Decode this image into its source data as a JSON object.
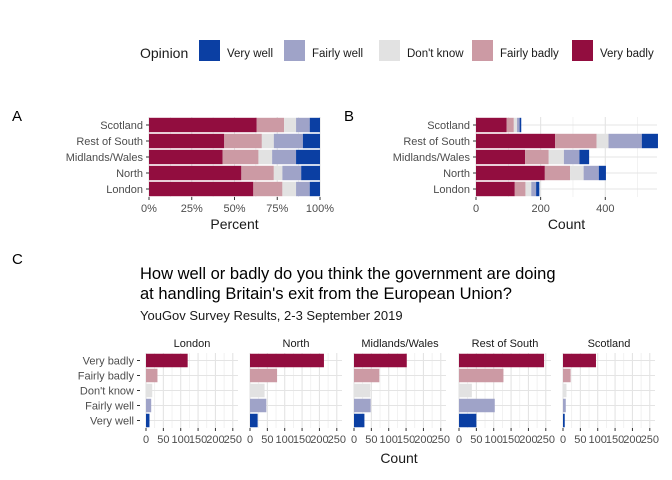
{
  "colors": {
    "very_well": "#0b3fa3",
    "fairly_well": "#9fa3c8",
    "dont_know": "#e2e2e2",
    "fairly_badly": "#cc9aa4",
    "very_badly": "#920d3f",
    "grid": "#ececec"
  },
  "legend": {
    "title": "Opinion",
    "items": [
      "Very well",
      "Fairly well",
      "Don't know",
      "Fairly badly",
      "Very badly"
    ]
  },
  "chart_data": [
    {
      "panel": "A",
      "type": "bar",
      "orientation": "horizontal",
      "stacked": true,
      "xlabel": "Percent",
      "ylabel": "",
      "xlim": [
        0,
        100
      ],
      "xticks": [
        "0%",
        "25%",
        "50%",
        "75%",
        "100%"
      ],
      "categories": [
        "Scotland",
        "Rest of South",
        "Midlands/Wales",
        "North",
        "London"
      ],
      "series": [
        {
          "name": "Very badly",
          "values": [
            63,
            44,
            43,
            54,
            61
          ]
        },
        {
          "name": "Fairly badly",
          "values": [
            16,
            22,
            21,
            19,
            17
          ]
        },
        {
          "name": "Don't know",
          "values": [
            7,
            7,
            8,
            5,
            8
          ]
        },
        {
          "name": "Fairly well",
          "values": [
            8,
            17,
            14,
            11,
            8
          ]
        },
        {
          "name": "Very well",
          "values": [
            6,
            10,
            14,
            11,
            6
          ]
        }
      ]
    },
    {
      "panel": "B",
      "type": "bar",
      "orientation": "horizontal",
      "stacked": true,
      "xlabel": "Count",
      "ylabel": "",
      "xlim": [
        0,
        560
      ],
      "xticks": [
        0,
        200,
        400
      ],
      "categories": [
        "Scotland",
        "Rest of South",
        "Midlands/Wales",
        "North",
        "London"
      ],
      "series": [
        {
          "name": "Very badly",
          "values": [
            95,
            245,
            152,
            213,
            120
          ]
        },
        {
          "name": "Fairly badly",
          "values": [
            22,
            128,
            73,
            78,
            33
          ]
        },
        {
          "name": "Don't know",
          "values": [
            10,
            37,
            47,
            42,
            18
          ]
        },
        {
          "name": "Fairly well",
          "values": [
            8,
            103,
            48,
            47,
            15
          ]
        },
        {
          "name": "Very well",
          "values": [
            5,
            50,
            30,
            22,
            10
          ]
        }
      ]
    },
    {
      "panel": "C",
      "type": "bar",
      "orientation": "horizontal",
      "faceted": true,
      "title": "How well or badly do you think the government are doing\nat handling Britain's exit from the European Union?",
      "subtitle": "YouGov Survey Results, 2-3 September 2019",
      "xlabel": "Count",
      "ylabel": "",
      "xlim": [
        0,
        265
      ],
      "xticks": [
        0,
        50,
        100,
        150,
        200,
        250
      ],
      "categories": [
        "Very badly",
        "Fairly badly",
        "Don't know",
        "Fairly well",
        "Very well"
      ],
      "facets": [
        {
          "name": "London",
          "values": [
            120,
            33,
            18,
            15,
            10
          ]
        },
        {
          "name": "North",
          "values": [
            213,
            78,
            42,
            47,
            22
          ]
        },
        {
          "name": "Midlands/Wales",
          "values": [
            152,
            73,
            47,
            48,
            30
          ]
        },
        {
          "name": "Rest of South",
          "values": [
            245,
            128,
            37,
            103,
            50
          ]
        },
        {
          "name": "Scotland",
          "values": [
            95,
            22,
            10,
            8,
            5
          ]
        }
      ]
    }
  ]
}
